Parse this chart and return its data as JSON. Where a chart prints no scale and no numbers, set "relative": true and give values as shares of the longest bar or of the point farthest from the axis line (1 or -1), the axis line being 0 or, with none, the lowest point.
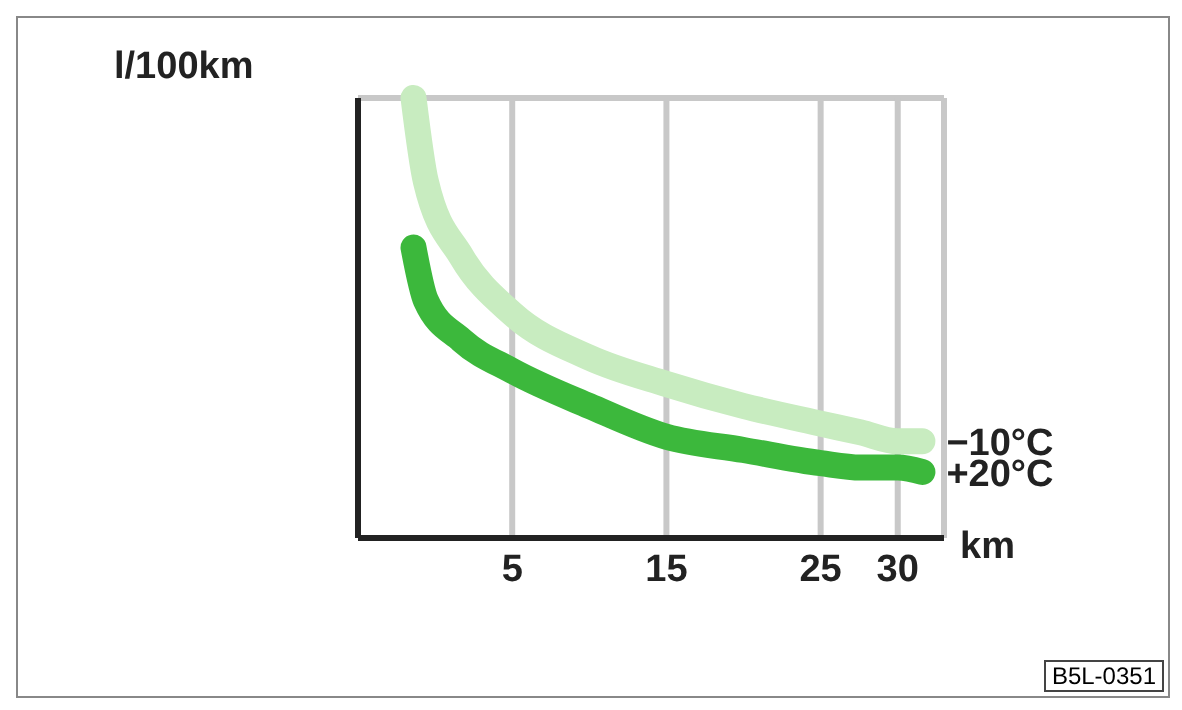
{
  "chart_data": {
    "type": "line",
    "ylabel": "l/100km",
    "xlabel": "km",
    "relative": true,
    "grid": true,
    "marker": "none",
    "line_style": "solid",
    "xlim": [
      -5,
      33
    ],
    "xticks": [
      5,
      15,
      25,
      30
    ],
    "x": [
      -1.4,
      -0.6,
      1.7,
      5,
      10,
      15,
      20,
      25,
      27.6,
      30,
      31.6
    ],
    "series": [
      {
        "name": "−10°C",
        "color": "#c8ecc0",
        "values": [
          1,
          0.81,
          0.64,
          0.51,
          0.41,
          0.35,
          0.3,
          0.26,
          0.24,
          0.22,
          0.22
        ]
      },
      {
        "name": "+20°C",
        "color": "#3cb83c",
        "values": [
          0.66,
          0.54,
          0.45,
          0.38,
          0.3,
          0.23,
          0.2,
          0.17,
          0.16,
          0.16,
          0.15
        ]
      }
    ],
    "annotations": [
      "B5L-0351"
    ]
  }
}
